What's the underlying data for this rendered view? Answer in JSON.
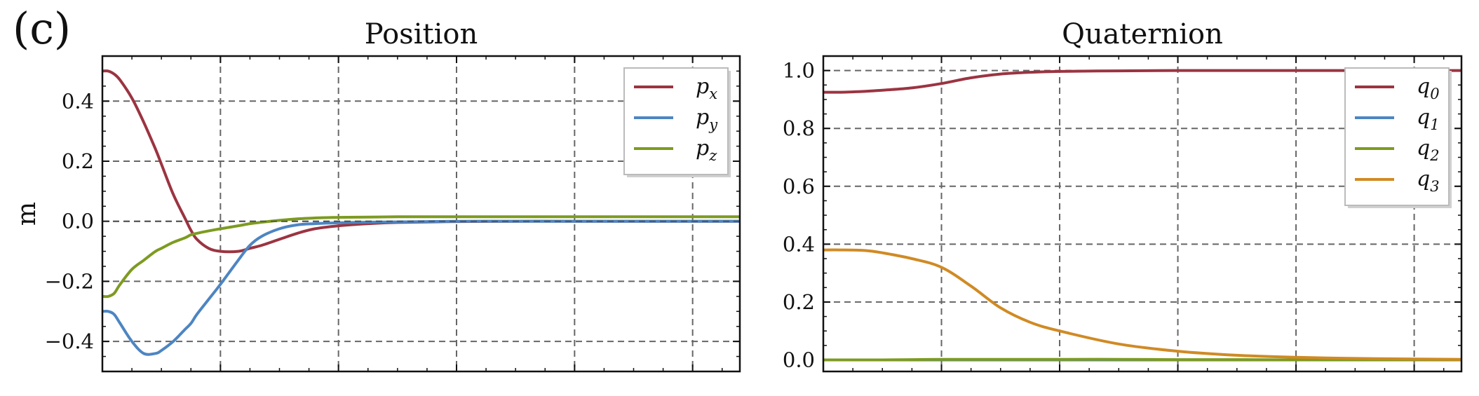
{
  "figure": {
    "panel_label": "(c)"
  },
  "chart_data": [
    {
      "type": "line",
      "title": "Position",
      "xlabel": "",
      "ylabel": "m",
      "xlim": [
        0,
        10.8
      ],
      "ylim": [
        -0.5,
        0.55
      ],
      "yticks": [
        -0.4,
        -0.2,
        0.0,
        0.2,
        0.4
      ],
      "ytick_labels": [
        "−0.4",
        "−0.2",
        "0.0",
        "0.2",
        "0.4"
      ],
      "xticks": [
        0,
        2,
        4,
        6,
        8,
        10
      ],
      "xtick_labels": [
        "",
        "",
        "",
        "",
        "",
        ""
      ],
      "grid": true,
      "legend_position": "top-right",
      "x": [
        0,
        0.1,
        0.2,
        0.3,
        0.5,
        0.7,
        0.9,
        1.0,
        1.2,
        1.4,
        1.5,
        1.6,
        1.8,
        2.0,
        2.3,
        2.5,
        2.7,
        3.0,
        3.3,
        3.6,
        4.0,
        4.5,
        5.0,
        6.0,
        7.0,
        8.0,
        9.0,
        10.0,
        10.8
      ],
      "series": [
        {
          "name": "p",
          "subscript": "x",
          "color": "#9b3441",
          "values": [
            0.5,
            0.5,
            0.49,
            0.47,
            0.41,
            0.33,
            0.24,
            0.19,
            0.09,
            0.01,
            -0.03,
            -0.06,
            -0.09,
            -0.1,
            -0.1,
            -0.09,
            -0.08,
            -0.06,
            -0.04,
            -0.025,
            -0.015,
            -0.008,
            -0.004,
            -0.001,
            0.0,
            0.0,
            0.0,
            0.0,
            0.0
          ]
        },
        {
          "name": "p",
          "subscript": "y",
          "color": "#4d85c2",
          "values": [
            -0.3,
            -0.3,
            -0.31,
            -0.34,
            -0.4,
            -0.44,
            -0.44,
            -0.43,
            -0.4,
            -0.36,
            -0.34,
            -0.31,
            -0.26,
            -0.21,
            -0.13,
            -0.08,
            -0.05,
            -0.025,
            -0.012,
            -0.008,
            -0.005,
            -0.003,
            -0.002,
            0.0,
            0.0,
            0.0,
            0.0,
            0.0,
            0.0
          ]
        },
        {
          "name": "p",
          "subscript": "z",
          "color": "#7d9b21",
          "values": [
            -0.25,
            -0.25,
            -0.24,
            -0.21,
            -0.16,
            -0.13,
            -0.1,
            -0.09,
            -0.07,
            -0.055,
            -0.045,
            -0.04,
            -0.032,
            -0.025,
            -0.015,
            -0.008,
            -0.003,
            0.003,
            0.008,
            0.011,
            0.013,
            0.014,
            0.015,
            0.015,
            0.015,
            0.015,
            0.015,
            0.015,
            0.015
          ]
        }
      ]
    },
    {
      "type": "line",
      "title": "Quaternion",
      "xlabel": "",
      "ylabel": "",
      "xlim": [
        0,
        10.8
      ],
      "ylim": [
        -0.04,
        1.05
      ],
      "yticks": [
        0.0,
        0.2,
        0.4,
        0.6,
        0.8,
        1.0
      ],
      "ytick_labels": [
        "0.0",
        "0.2",
        "0.4",
        "0.6",
        "0.8",
        "1.0"
      ],
      "xticks": [
        0,
        2,
        4,
        6,
        8,
        10
      ],
      "xtick_labels": [
        "",
        "",
        "",
        "",
        "",
        ""
      ],
      "grid": true,
      "legend_position": "top-right",
      "x": [
        0,
        0.3,
        0.7,
        1.0,
        1.5,
        2.0,
        2.5,
        3.0,
        3.5,
        4.0,
        5.0,
        6.0,
        7.0,
        8.0,
        9.0,
        10.0,
        10.8
      ],
      "series": [
        {
          "name": "q",
          "subscript": "0",
          "color": "#9b3441",
          "values": [
            0.925,
            0.925,
            0.928,
            0.932,
            0.94,
            0.955,
            0.975,
            0.988,
            0.994,
            0.997,
            0.999,
            1.0,
            1.0,
            1.0,
            1.0,
            1.0,
            1.0
          ]
        },
        {
          "name": "q",
          "subscript": "1",
          "color": "#4d85c2",
          "values": [
            0.0,
            0.0,
            0.0,
            0.0,
            0.0,
            0.0,
            0.0,
            0.0,
            0.0,
            0.0,
            0.0,
            0.0,
            0.0,
            0.0,
            0.0,
            0.0,
            0.0
          ]
        },
        {
          "name": "q",
          "subscript": "2",
          "color": "#7d9b21",
          "values": [
            0.0,
            0.0,
            0.0,
            0.0,
            0.001,
            0.002,
            0.002,
            0.002,
            0.002,
            0.002,
            0.002,
            0.001,
            0.001,
            0.0,
            0.0,
            0.0,
            0.0
          ]
        },
        {
          "name": "q",
          "subscript": "3",
          "color": "#d08a24",
          "values": [
            0.38,
            0.38,
            0.378,
            0.37,
            0.35,
            0.32,
            0.255,
            0.18,
            0.13,
            0.1,
            0.055,
            0.03,
            0.016,
            0.009,
            0.005,
            0.003,
            0.002
          ]
        }
      ]
    }
  ]
}
